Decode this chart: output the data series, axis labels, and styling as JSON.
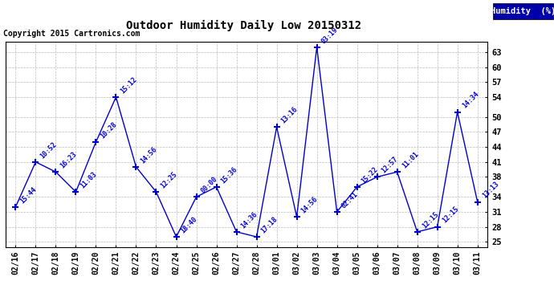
{
  "title": "Outdoor Humidity Daily Low 20150312",
  "copyright": "Copyright 2015 Cartronics.com",
  "legend_label": "Humidity  (%)",
  "yticks": [
    25,
    28,
    31,
    34,
    38,
    41,
    44,
    47,
    50,
    54,
    57,
    60,
    63
  ],
  "ylim": [
    24,
    65
  ],
  "dates": [
    "02/16",
    "02/17",
    "02/18",
    "02/19",
    "02/20",
    "02/21",
    "02/22",
    "02/23",
    "02/24",
    "02/25",
    "02/26",
    "02/27",
    "02/28",
    "03/01",
    "03/02",
    "03/03",
    "03/04",
    "03/05",
    "03/06",
    "03/07",
    "03/08",
    "03/09",
    "03/10",
    "03/11"
  ],
  "values": [
    32,
    41,
    39,
    35,
    45,
    54,
    40,
    35,
    26,
    34,
    36,
    27,
    26,
    48,
    30,
    64,
    31,
    36,
    38,
    39,
    27,
    28,
    51,
    33
  ],
  "labels": [
    "15:44",
    "10:52",
    "16:23",
    "11:03",
    "10:28",
    "15:12",
    "14:56",
    "12:25",
    "18:40",
    "00:00",
    "15:36",
    "14:36",
    "17:18",
    "13:16",
    "14:56",
    "03:19",
    "02:41",
    "15:22",
    "12:57",
    "11:01",
    "12:15",
    "12:15",
    "14:34",
    "13:13"
  ],
  "line_color": "#0000cc",
  "marker_color": "#0000cc",
  "bg_color": "#ffffff",
  "grid_color": "#bbbbbb",
  "title_color": "#000000",
  "label_color": "#0000cc",
  "legend_bg": "#0000aa",
  "legend_fg": "#ffffff"
}
